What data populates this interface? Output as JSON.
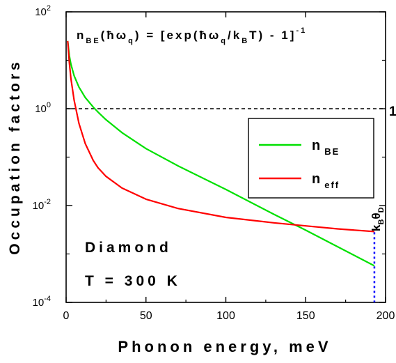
{
  "chart_data": {
    "type": "line",
    "title": "",
    "formula": {
      "n": "n",
      "sub_be": "BE",
      "arg_open": "(",
      "hbar": "ħ",
      "omega": "ω",
      "sub_q": "q",
      "arg_close": ")",
      "rhs_open": " = [exp(",
      "div_k": "/k",
      "sub_b": "B",
      "rhs_close": "T) - 1]",
      "exponent": "-1"
    },
    "xlabel": "Phonon energy, meV",
    "ylabel": "Occupation factors",
    "xlim": [
      0,
      200
    ],
    "ylim": [
      0.0001,
      100
    ],
    "yscale": "log",
    "grid": false,
    "x_ticks": [
      "0",
      "50",
      "100",
      "150",
      "200"
    ],
    "y_ticks": [
      {
        "value": 0.0001,
        "base": "10",
        "exp": "-4"
      },
      {
        "value": 0.01,
        "base": "10",
        "exp": "-2"
      },
      {
        "value": 1,
        "base": "10",
        "exp": "0"
      },
      {
        "value": 100,
        "base": "10",
        "exp": "2"
      }
    ],
    "reference_line": {
      "y": 1,
      "label": "1",
      "style": "dashed",
      "color": "#000000"
    },
    "vertical_marker": {
      "x": 193,
      "label_main": "k",
      "label_sub1": "B",
      "label_theta": "θ",
      "label_sub2": "D",
      "style": "dotted",
      "color": "#0000ff"
    },
    "series": [
      {
        "name": "BE",
        "name_main": "n",
        "name_sub": "BE",
        "color": "#00e000",
        "x": [
          1,
          2,
          3,
          5,
          8,
          12,
          17,
          20,
          25,
          35,
          50,
          70,
          100,
          130,
          150,
          170,
          193
        ],
        "y": [
          25,
          12.5,
          8.3,
          4.8,
          2.8,
          1.7,
          1.08,
          0.85,
          0.59,
          0.32,
          0.15,
          0.066,
          0.0215,
          0.0066,
          0.0031,
          0.00141,
          0.00057
        ]
      },
      {
        "name": "eff",
        "name_main": "n",
        "name_sub": "eff",
        "color": "#ff0000",
        "x": [
          1,
          2,
          3,
          5,
          8,
          12,
          17,
          20,
          25,
          35,
          50,
          70,
          100,
          130,
          150,
          170,
          193
        ],
        "y": [
          25,
          9,
          4.2,
          1.5,
          0.5,
          0.19,
          0.085,
          0.06,
          0.04,
          0.023,
          0.0135,
          0.0087,
          0.0057,
          0.0044,
          0.0038,
          0.0033,
          0.0029
        ]
      }
    ],
    "annotations": [
      "Diamond",
      "T = 300 K"
    ]
  }
}
